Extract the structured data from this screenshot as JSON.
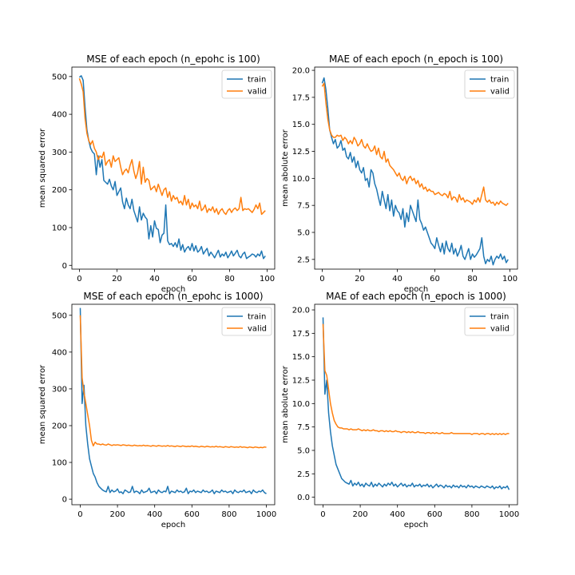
{
  "chart_data": [
    {
      "type": "line",
      "title": "MSE of each epoch (n_epohc is 100)",
      "xlabel": "epoch",
      "ylabel": "mean squared error",
      "xlim": [
        -4,
        104
      ],
      "ylim": [
        -10,
        525
      ],
      "xticks": [
        0,
        20,
        40,
        60,
        80,
        100
      ],
      "yticks": [
        0,
        100,
        200,
        300,
        400,
        500
      ],
      "grid": false,
      "legend": "top-right",
      "series": [
        {
          "name": "train",
          "color": "#1f77b4",
          "x_start": 0,
          "x_step": 1,
          "values": [
            498,
            502,
            490,
            420,
            360,
            330,
            310,
            300,
            295,
            240,
            290,
            260,
            280,
            225,
            220,
            215,
            228,
            210,
            200,
            222,
            185,
            195,
            205,
            168,
            150,
            178,
            160,
            150,
            175,
            145,
            130,
            115,
            155,
            120,
            138,
            128,
            122,
            70,
            105,
            75,
            118,
            98,
            95,
            60,
            80,
            85,
            160,
            65,
            55,
            58,
            50,
            60,
            48,
            70,
            40,
            55,
            35,
            45,
            50,
            40,
            58,
            38,
            52,
            35,
            40,
            50,
            30,
            38,
            45,
            25,
            35,
            28,
            20,
            30,
            40,
            22,
            30,
            25,
            35,
            20,
            28,
            38,
            25,
            32,
            40,
            25,
            20,
            30,
            35,
            18,
            22,
            25,
            30,
            28,
            22,
            30,
            25,
            38,
            18,
            25
          ]
        },
        {
          "name": "valid",
          "color": "#ff7f0e",
          "x_start": 0,
          "x_step": 1,
          "values": [
            495,
            480,
            460,
            390,
            350,
            330,
            320,
            330,
            310,
            300,
            280,
            290,
            285,
            300,
            265,
            275,
            280,
            260,
            290,
            275,
            280,
            285,
            260,
            240,
            250,
            255,
            245,
            265,
            280,
            250,
            230,
            245,
            275,
            215,
            260,
            220,
            230,
            225,
            200,
            205,
            210,
            195,
            215,
            200,
            185,
            200,
            205,
            180,
            195,
            170,
            185,
            175,
            180,
            165,
            170,
            160,
            185,
            160,
            175,
            150,
            165,
            155,
            160,
            150,
            170,
            145,
            150,
            160,
            140,
            150,
            145,
            155,
            140,
            150,
            135,
            145,
            150,
            140,
            135,
            145,
            150,
            140,
            148,
            152,
            145,
            150,
            180,
            145,
            150,
            148,
            150,
            145,
            140,
            148,
            160,
            150,
            165,
            135,
            140,
            145
          ]
        }
      ]
    },
    {
      "type": "line",
      "title": "MAE of each epoch (n_epoch is 100)",
      "xlabel": "epoch",
      "ylabel": "mean abolute error",
      "xlim": [
        -4,
        104
      ],
      "ylim": [
        1.6,
        20.3
      ],
      "xticks": [
        0,
        20,
        40,
        60,
        80,
        100
      ],
      "yticks": [
        2.5,
        5.0,
        7.5,
        10.0,
        12.5,
        15.0,
        17.5,
        20.0
      ],
      "ytick_labels": [
        "2.5",
        "5.0",
        "7.5",
        "10.0",
        "12.5",
        "15.0",
        "17.5",
        "20.0"
      ],
      "grid": false,
      "legend": "top-right",
      "series": [
        {
          "name": "train",
          "color": "#1f77b4",
          "x_start": 0,
          "x_step": 1,
          "values": [
            18.8,
            19.3,
            18.2,
            16.5,
            14.5,
            13.8,
            13.2,
            13.6,
            12.8,
            13.0,
            13.5,
            12.6,
            12.8,
            12.0,
            11.8,
            12.4,
            11.5,
            12.0,
            11.0,
            11.6,
            10.8,
            10.5,
            11.0,
            9.8,
            10.0,
            9.2,
            10.8,
            10.5,
            9.5,
            9.0,
            8.2,
            7.5,
            8.8,
            8.0,
            7.2,
            8.5,
            7.0,
            8.0,
            6.5,
            7.5,
            7.0,
            6.8,
            6.2,
            7.2,
            5.5,
            6.8,
            6.0,
            7.5,
            7.0,
            6.5,
            6.0,
            8.0,
            6.2,
            5.8,
            5.2,
            5.5,
            5.0,
            4.5,
            4.0,
            3.8,
            3.5,
            4.5,
            3.8,
            3.2,
            4.0,
            3.0,
            4.2,
            3.5,
            3.2,
            4.0,
            3.0,
            3.5,
            2.8,
            3.2,
            3.8,
            2.8,
            2.5,
            3.0,
            3.5,
            2.5,
            3.0,
            2.7,
            2.9,
            3.2,
            3.5,
            4.5,
            2.8,
            2.1,
            2.5,
            2.3,
            2.8,
            2.0,
            2.5,
            2.8,
            2.6,
            3.0,
            2.5,
            2.8,
            2.2,
            2.5
          ]
        },
        {
          "name": "valid",
          "color": "#ff7f0e",
          "x_start": 0,
          "x_step": 1,
          "values": [
            18.5,
            18.8,
            17.0,
            15.5,
            14.5,
            14.0,
            13.8,
            13.8,
            14.0,
            13.9,
            14.0,
            13.5,
            13.8,
            13.6,
            13.2,
            13.5,
            13.2,
            13.8,
            13.5,
            13.0,
            13.2,
            13.6,
            13.0,
            12.8,
            13.2,
            12.8,
            12.5,
            12.6,
            13.0,
            12.2,
            12.8,
            12.0,
            11.8,
            12.5,
            11.5,
            11.8,
            11.2,
            11.0,
            10.8,
            10.5,
            10.2,
            10.5,
            10.0,
            9.8,
            10.2,
            9.5,
            10.0,
            10.2,
            9.8,
            10.0,
            9.5,
            9.8,
            9.2,
            9.5,
            9.0,
            9.2,
            8.8,
            9.0,
            8.8,
            8.8,
            8.5,
            8.6,
            8.7,
            8.5,
            8.4,
            8.6,
            8.5,
            8.2,
            8.8,
            8.0,
            8.3,
            8.2,
            7.8,
            8.5,
            8.0,
            8.2,
            7.8,
            8.0,
            7.9,
            7.8,
            7.6,
            8.0,
            7.8,
            8.2,
            7.8,
            8.5,
            9.2,
            8.0,
            7.8,
            8.0,
            7.7,
            7.8,
            7.5,
            7.8,
            7.6,
            7.9,
            7.7,
            7.6,
            7.5,
            7.7
          ]
        }
      ]
    },
    {
      "type": "line",
      "title": "MSE of each epoch (n_epohc is 1000)",
      "xlabel": "epoch",
      "ylabel": "mean squared error",
      "xlim": [
        -45,
        1045
      ],
      "ylim": [
        -15,
        530
      ],
      "xticks": [
        0,
        200,
        400,
        600,
        800,
        1000
      ],
      "yticks": [
        0,
        100,
        200,
        300,
        400,
        500
      ],
      "grid": false,
      "legend": "top-right",
      "series": [
        {
          "name": "train",
          "color": "#1f77b4",
          "x_start": 0,
          "x_step": 10,
          "values": [
            520,
            260,
            310,
            200,
            150,
            110,
            90,
            70,
            60,
            45,
            35,
            30,
            25,
            22,
            20,
            35,
            18,
            25,
            20,
            22,
            28,
            18,
            20,
            15,
            25,
            22,
            18,
            20,
            35,
            18,
            22,
            20,
            15,
            25,
            18,
            20,
            22,
            30,
            18,
            20,
            22,
            15,
            25,
            20,
            18,
            22,
            20,
            35,
            15,
            22,
            20,
            18,
            25,
            20,
            22,
            18,
            20,
            30,
            15,
            22,
            20,
            25,
            18,
            22,
            20,
            18,
            25,
            20,
            22,
            18,
            20,
            25,
            15,
            22,
            20,
            18,
            25,
            20,
            22,
            18,
            20,
            22,
            15,
            25,
            20,
            18,
            22,
            20,
            25,
            18,
            20,
            22,
            15,
            25,
            20,
            18,
            22,
            20,
            25,
            18,
            15
          ]
        },
        {
          "name": "valid",
          "color": "#ff7f0e",
          "x_start": 0,
          "x_step": 10,
          "values": [
            500,
            330,
            290,
            260,
            230,
            200,
            160,
            145,
            155,
            150,
            150,
            148,
            150,
            148,
            147,
            150,
            148,
            146,
            148,
            147,
            148,
            147,
            146,
            148,
            147,
            146,
            147,
            146,
            145,
            147,
            146,
            145,
            146,
            145,
            147,
            145,
            146,
            145,
            144,
            146,
            145,
            144,
            146,
            145,
            144,
            145,
            144,
            146,
            144,
            145,
            144,
            143,
            145,
            144,
            143,
            145,
            144,
            143,
            144,
            143,
            145,
            143,
            144,
            143,
            142,
            144,
            143,
            142,
            144,
            143,
            142,
            143,
            142,
            144,
            142,
            143,
            142,
            141,
            143,
            142,
            141,
            143,
            142,
            141,
            142,
            141,
            143,
            141,
            142,
            141,
            140,
            142,
            141,
            140,
            142,
            141,
            140,
            141,
            140,
            142,
            141
          ]
        }
      ]
    },
    {
      "type": "line",
      "title": "MAE of each epoch (n_epoch is 1000)",
      "xlabel": "epoch",
      "ylabel": "mean abolute error",
      "xlim": [
        -45,
        1045
      ],
      "ylim": [
        -0.8,
        20.6
      ],
      "xticks": [
        0,
        200,
        400,
        600,
        800,
        1000
      ],
      "yticks": [
        0.0,
        2.5,
        5.0,
        7.5,
        10.0,
        12.5,
        15.0,
        17.5,
        20.0
      ],
      "ytick_labels": [
        "0.0",
        "2.5",
        "5.0",
        "7.5",
        "10.0",
        "12.5",
        "15.0",
        "17.5",
        "20.0"
      ],
      "grid": false,
      "legend": "top-right",
      "series": [
        {
          "name": "train",
          "color": "#1f77b4",
          "x_start": 0,
          "x_step": 10,
          "values": [
            19.2,
            11.0,
            12.5,
            9.0,
            7.0,
            5.5,
            4.5,
            3.5,
            3.0,
            2.5,
            2.0,
            1.8,
            1.6,
            1.5,
            1.4,
            1.8,
            1.2,
            1.5,
            1.3,
            1.6,
            1.2,
            1.4,
            1.1,
            1.5,
            1.3,
            1.2,
            1.6,
            1.1,
            1.4,
            1.2,
            1.5,
            1.3,
            1.1,
            1.4,
            1.2,
            1.5,
            1.3,
            1.6,
            1.2,
            1.4,
            1.1,
            1.3,
            1.5,
            1.2,
            1.4,
            1.1,
            1.3,
            1.2,
            1.5,
            1.1,
            1.3,
            1.2,
            1.4,
            1.1,
            1.3,
            1.2,
            1.4,
            1.1,
            1.3,
            1.0,
            1.2,
            1.4,
            1.1,
            1.3,
            1.2,
            1.0,
            1.3,
            1.1,
            1.2,
            1.0,
            1.3,
            1.1,
            1.2,
            1.0,
            1.3,
            1.1,
            1.2,
            1.0,
            1.3,
            1.1,
            1.2,
            1.0,
            1.2,
            1.1,
            1.0,
            1.2,
            1.1,
            1.0,
            1.2,
            1.1,
            1.0,
            1.2,
            0.9,
            1.1,
            1.0,
            1.2,
            0.9,
            1.1,
            1.0,
            1.2,
            0.8
          ]
        },
        {
          "name": "valid",
          "color": "#ff7f0e",
          "x_start": 0,
          "x_step": 10,
          "values": [
            18.5,
            13.5,
            13.0,
            11.5,
            10.0,
            9.0,
            8.2,
            7.8,
            7.5,
            7.4,
            7.4,
            7.3,
            7.3,
            7.3,
            7.2,
            7.3,
            7.2,
            7.2,
            7.2,
            7.3,
            7.2,
            7.1,
            7.2,
            7.1,
            7.2,
            7.1,
            7.1,
            7.2,
            7.1,
            7.1,
            7.0,
            7.1,
            7.1,
            7.0,
            7.1,
            7.0,
            7.1,
            7.0,
            7.0,
            7.1,
            7.0,
            7.0,
            6.9,
            7.0,
            7.0,
            6.9,
            7.0,
            6.9,
            7.0,
            6.9,
            6.9,
            7.0,
            6.9,
            6.9,
            6.9,
            6.8,
            6.9,
            6.9,
            6.8,
            6.9,
            6.8,
            6.9,
            6.8,
            6.8,
            6.9,
            6.8,
            6.8,
            6.8,
            6.8,
            6.9,
            6.8,
            6.8,
            6.8,
            6.8,
            6.8,
            6.8,
            6.8,
            6.8,
            6.8,
            6.8,
            6.7,
            6.8,
            6.8,
            6.8,
            6.7,
            6.8,
            6.8,
            6.7,
            6.8,
            6.8,
            6.7,
            6.8,
            6.7,
            6.8,
            6.7,
            6.8,
            6.7,
            6.8,
            6.7,
            6.8,
            6.8
          ]
        }
      ]
    }
  ]
}
